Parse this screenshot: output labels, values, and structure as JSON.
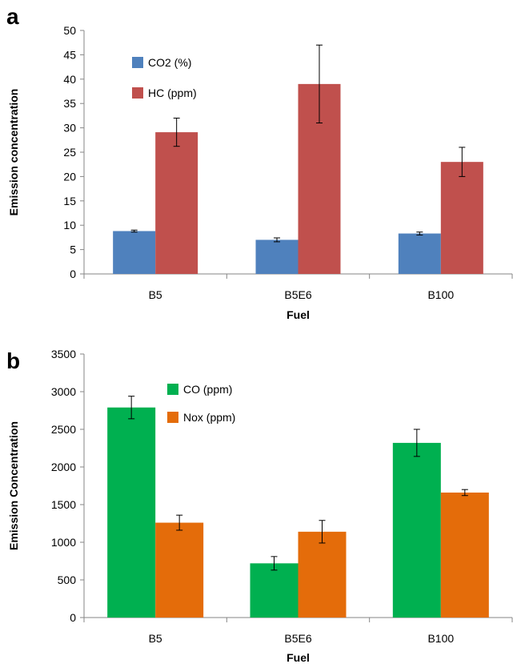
{
  "chart_data": [
    {
      "type": "bar",
      "panel_label": "a",
      "categories": [
        "B5",
        "B5E6",
        "B100"
      ],
      "xlabel": "Fuel",
      "ylabel": "Emission concentration",
      "ylim": [
        0,
        50
      ],
      "yticks": [
        0,
        5,
        10,
        15,
        20,
        25,
        30,
        35,
        40,
        45,
        50
      ],
      "grid": false,
      "legend_position": "top-left",
      "series": [
        {
          "name": "CO2 (%)",
          "color": "#4f81bd",
          "values": [
            8.8,
            7.0,
            8.3
          ],
          "errors": [
            0.2,
            0.4,
            0.3
          ]
        },
        {
          "name": "HC (ppm)",
          "color": "#c0504d",
          "values": [
            29.1,
            39.0,
            23.0
          ],
          "errors": [
            2.9,
            8.0,
            3.0
          ]
        }
      ]
    },
    {
      "type": "bar",
      "panel_label": "b",
      "categories": [
        "B5",
        "B5E6",
        "B100"
      ],
      "xlabel": "Fuel",
      "ylabel": "Emission Concentration",
      "ylim": [
        0,
        3500
      ],
      "yticks": [
        0,
        500,
        1000,
        1500,
        2000,
        2500,
        3000,
        3500
      ],
      "grid": false,
      "legend_position": "top-left",
      "series": [
        {
          "name": "CO (ppm)",
          "color": "#00b050",
          "values": [
            2790,
            720,
            2320
          ],
          "errors": [
            150,
            90,
            180
          ]
        },
        {
          "name": "Nox (ppm)",
          "color": "#e46c0a",
          "values": [
            1260,
            1140,
            1660
          ],
          "errors": [
            100,
            150,
            40
          ]
        }
      ]
    }
  ]
}
